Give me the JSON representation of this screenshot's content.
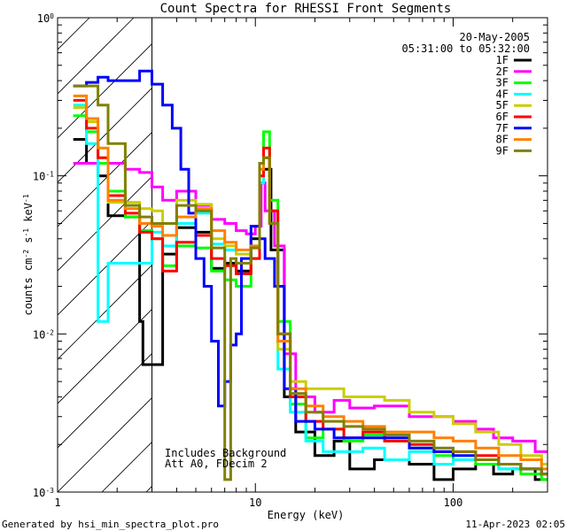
{
  "chart_data": {
    "type": "line",
    "title": "Count Spectra for RHESSI Front Segments",
    "xlabel": "Energy (keV)",
    "ylabel_main": "counts cm",
    "ylabel_sup1": "-2",
    "ylabel_mid": " s",
    "ylabel_sup2": "-1",
    "ylabel_mid2": " keV",
    "ylabel_sup3": "-1",
    "xscale": "log",
    "yscale": "log",
    "xlim": [
      1,
      300
    ],
    "ylim": [
      0.001,
      1
    ],
    "x_ticks": [
      {
        "value": 1,
        "label": "1"
      },
      {
        "value": 10,
        "label": "10"
      },
      {
        "value": 100,
        "label": "100"
      }
    ],
    "y_ticks": [
      {
        "value": 0.001,
        "base": "10",
        "exp": "-3"
      },
      {
        "value": 0.01,
        "base": "10",
        "exp": "-2"
      },
      {
        "value": 0.1,
        "base": "10",
        "exp": "-1"
      },
      {
        "value": 1,
        "base": "10",
        "exp": "0"
      }
    ],
    "date_text": "20-May-2005",
    "time_text": "05:31:00 to 05:32:00",
    "annotation_line1": "Includes Background",
    "annotation_line2": "Att A0, FDecim 2",
    "hatched_region_x": [
      1,
      3
    ],
    "legend_position": "top-right",
    "series": [
      {
        "name": "1F",
        "color": "#000000",
        "points": [
          [
            1.2,
            0.17
          ],
          [
            1.4,
            0.12
          ],
          [
            1.6,
            0.1
          ],
          [
            1.8,
            0.056
          ],
          [
            2.2,
            0.055
          ],
          [
            2.6,
            0.012
          ],
          [
            2.7,
            0.0064
          ],
          [
            3.2,
            0.0064
          ],
          [
            3.4,
            0.032
          ],
          [
            4.0,
            0.047
          ],
          [
            5.0,
            0.044
          ],
          [
            6.0,
            0.026
          ],
          [
            7.0,
            0.028
          ],
          [
            8.0,
            0.025
          ],
          [
            9.5,
            0.04
          ],
          [
            10.5,
            0.09
          ],
          [
            11.0,
            0.11
          ],
          [
            12.0,
            0.034
          ],
          [
            14,
            0.004
          ],
          [
            16,
            0.0024
          ],
          [
            20,
            0.0017
          ],
          [
            25,
            0.0021
          ],
          [
            30,
            0.0014
          ],
          [
            40,
            0.0016
          ],
          [
            60,
            0.0015
          ],
          [
            80,
            0.0012
          ],
          [
            100,
            0.0014
          ],
          [
            130,
            0.0015
          ],
          [
            160,
            0.0013
          ],
          [
            200,
            0.0014
          ],
          [
            260,
            0.0012
          ]
        ]
      },
      {
        "name": "2F",
        "color": "#ff00ff",
        "points": [
          [
            1.2,
            0.12
          ],
          [
            1.8,
            0.12
          ],
          [
            2.2,
            0.11
          ],
          [
            2.6,
            0.105
          ],
          [
            3.0,
            0.085
          ],
          [
            3.4,
            0.07
          ],
          [
            4.0,
            0.08
          ],
          [
            5.0,
            0.065
          ],
          [
            6.0,
            0.053
          ],
          [
            7.0,
            0.05
          ],
          [
            8.0,
            0.045
          ],
          [
            9.0,
            0.043
          ],
          [
            10.0,
            0.048
          ],
          [
            10.7,
            0.09
          ],
          [
            11.2,
            0.06
          ],
          [
            12.5,
            0.036
          ],
          [
            14,
            0.0075
          ],
          [
            16,
            0.004
          ],
          [
            20,
            0.0032
          ],
          [
            25,
            0.0038
          ],
          [
            30,
            0.0034
          ],
          [
            40,
            0.0035
          ],
          [
            60,
            0.003
          ],
          [
            80,
            0.003
          ],
          [
            100,
            0.0028
          ],
          [
            130,
            0.0025
          ],
          [
            160,
            0.0022
          ],
          [
            200,
            0.0021
          ],
          [
            260,
            0.0018
          ]
        ]
      },
      {
        "name": "3F",
        "color": "#00ff00",
        "points": [
          [
            1.2,
            0.24
          ],
          [
            1.4,
            0.19
          ],
          [
            1.6,
            0.12
          ],
          [
            1.8,
            0.08
          ],
          [
            2.2,
            0.055
          ],
          [
            2.6,
            0.045
          ],
          [
            3.0,
            0.04
          ],
          [
            3.4,
            0.027
          ],
          [
            4.0,
            0.036
          ],
          [
            5.0,
            0.035
          ],
          [
            6.0,
            0.025
          ],
          [
            7.0,
            0.022
          ],
          [
            8.0,
            0.02
          ],
          [
            9.5,
            0.03
          ],
          [
            10.5,
            0.12
          ],
          [
            11.0,
            0.19
          ],
          [
            11.8,
            0.07
          ],
          [
            13,
            0.012
          ],
          [
            15,
            0.0036
          ],
          [
            18,
            0.0022
          ],
          [
            22,
            0.0025
          ],
          [
            28,
            0.0021
          ],
          [
            35,
            0.0023
          ],
          [
            45,
            0.0021
          ],
          [
            60,
            0.0019
          ],
          [
            80,
            0.0017
          ],
          [
            100,
            0.0016
          ],
          [
            130,
            0.0015
          ],
          [
            170,
            0.0014
          ],
          [
            220,
            0.0013
          ],
          [
            280,
            0.0012
          ]
        ]
      },
      {
        "name": "4F",
        "color": "#00ffff",
        "points": [
          [
            1.2,
            0.28
          ],
          [
            1.4,
            0.16
          ],
          [
            1.6,
            0.012
          ],
          [
            1.8,
            0.028
          ],
          [
            2.2,
            0.028
          ],
          [
            2.6,
            0.028
          ],
          [
            3.0,
            0.044
          ],
          [
            3.4,
            0.036
          ],
          [
            4.0,
            0.05
          ],
          [
            5.0,
            0.058
          ],
          [
            6.0,
            0.037
          ],
          [
            7.0,
            0.034
          ],
          [
            8.0,
            0.032
          ],
          [
            9.5,
            0.036
          ],
          [
            10.5,
            0.09
          ],
          [
            11.0,
            0.13
          ],
          [
            11.8,
            0.05
          ],
          [
            13,
            0.006
          ],
          [
            15,
            0.0032
          ],
          [
            18,
            0.0021
          ],
          [
            22,
            0.0018
          ],
          [
            28,
            0.0018
          ],
          [
            35,
            0.0019
          ],
          [
            45,
            0.0016
          ],
          [
            60,
            0.0018
          ],
          [
            80,
            0.0015
          ],
          [
            100,
            0.0016
          ],
          [
            130,
            0.0016
          ],
          [
            170,
            0.0014
          ],
          [
            220,
            0.0014
          ],
          [
            280,
            0.0013
          ]
        ]
      },
      {
        "name": "5F",
        "color": "#cccc00",
        "points": [
          [
            1.2,
            0.27
          ],
          [
            1.4,
            0.22
          ],
          [
            1.6,
            0.13
          ],
          [
            1.8,
            0.068
          ],
          [
            2.2,
            0.068
          ],
          [
            2.6,
            0.062
          ],
          [
            3.0,
            0.06
          ],
          [
            3.4,
            0.05
          ],
          [
            4.0,
            0.07
          ],
          [
            5.0,
            0.066
          ],
          [
            6.0,
            0.04
          ],
          [
            7.0,
            0.036
          ],
          [
            8.0,
            0.032
          ],
          [
            9.5,
            0.035
          ],
          [
            10.5,
            0.1
          ],
          [
            11.0,
            0.13
          ],
          [
            11.8,
            0.05
          ],
          [
            13,
            0.008
          ],
          [
            15,
            0.005
          ],
          [
            18,
            0.0045
          ],
          [
            22,
            0.0045
          ],
          [
            28,
            0.004
          ],
          [
            35,
            0.004
          ],
          [
            45,
            0.0038
          ],
          [
            60,
            0.0032
          ],
          [
            80,
            0.003
          ],
          [
            100,
            0.0027
          ],
          [
            130,
            0.0024
          ],
          [
            170,
            0.002
          ],
          [
            220,
            0.0017
          ],
          [
            280,
            0.0015
          ]
        ]
      },
      {
        "name": "6F",
        "color": "#ff0000",
        "points": [
          [
            1.2,
            0.3
          ],
          [
            1.4,
            0.2
          ],
          [
            1.6,
            0.13
          ],
          [
            1.8,
            0.075
          ],
          [
            2.2,
            0.058
          ],
          [
            2.6,
            0.044
          ],
          [
            3.0,
            0.04
          ],
          [
            3.4,
            0.025
          ],
          [
            4.0,
            0.038
          ],
          [
            5.0,
            0.042
          ],
          [
            6.0,
            0.03
          ],
          [
            7.0,
            0.027
          ],
          [
            8.0,
            0.024
          ],
          [
            9.5,
            0.03
          ],
          [
            10.5,
            0.1
          ],
          [
            11.0,
            0.15
          ],
          [
            11.8,
            0.06
          ],
          [
            13,
            0.01
          ],
          [
            15,
            0.004
          ],
          [
            18,
            0.0028
          ],
          [
            22,
            0.0025
          ],
          [
            28,
            0.0022
          ],
          [
            35,
            0.0024
          ],
          [
            45,
            0.0021
          ],
          [
            60,
            0.002
          ],
          [
            80,
            0.0018
          ],
          [
            100,
            0.0018
          ],
          [
            130,
            0.0017
          ],
          [
            170,
            0.0015
          ],
          [
            220,
            0.0014
          ],
          [
            280,
            0.0013
          ]
        ]
      },
      {
        "name": "7F",
        "color": "#0000ff",
        "points": [
          [
            1.2,
            0.37
          ],
          [
            1.4,
            0.39
          ],
          [
            1.6,
            0.42
          ],
          [
            1.8,
            0.4
          ],
          [
            2.2,
            0.4
          ],
          [
            2.6,
            0.46
          ],
          [
            3.0,
            0.38
          ],
          [
            3.4,
            0.28
          ],
          [
            3.8,
            0.2
          ],
          [
            4.2,
            0.11
          ],
          [
            4.6,
            0.058
          ],
          [
            5.0,
            0.03
          ],
          [
            5.5,
            0.02
          ],
          [
            6.0,
            0.009
          ],
          [
            6.5,
            0.0035
          ],
          [
            7.0,
            0.005
          ],
          [
            7.5,
            0.0085
          ],
          [
            8.0,
            0.01
          ],
          [
            8.5,
            0.03
          ],
          [
            9.5,
            0.048
          ],
          [
            10.5,
            0.04
          ],
          [
            11.2,
            0.03
          ],
          [
            12.5,
            0.02
          ],
          [
            14,
            0.0045
          ],
          [
            16,
            0.0028
          ],
          [
            20,
            0.0025
          ],
          [
            25,
            0.0022
          ],
          [
            30,
            0.0022
          ],
          [
            40,
            0.0022
          ],
          [
            60,
            0.0019
          ],
          [
            80,
            0.0018
          ],
          [
            100,
            0.0017
          ],
          [
            130,
            0.0016
          ],
          [
            170,
            0.0015
          ],
          [
            220,
            0.0014
          ],
          [
            280,
            0.0013
          ]
        ]
      },
      {
        "name": "8F",
        "color": "#ff8000",
        "points": [
          [
            1.2,
            0.32
          ],
          [
            1.4,
            0.23
          ],
          [
            1.6,
            0.15
          ],
          [
            1.8,
            0.07
          ],
          [
            2.2,
            0.062
          ],
          [
            2.6,
            0.05
          ],
          [
            3.0,
            0.048
          ],
          [
            3.4,
            0.042
          ],
          [
            4.0,
            0.055
          ],
          [
            5.0,
            0.062
          ],
          [
            6.0,
            0.045
          ],
          [
            7.0,
            0.038
          ],
          [
            8.0,
            0.034
          ],
          [
            9.5,
            0.036
          ],
          [
            10.5,
            0.11
          ],
          [
            11.0,
            0.13
          ],
          [
            11.8,
            0.05
          ],
          [
            13,
            0.009
          ],
          [
            15,
            0.0045
          ],
          [
            18,
            0.0035
          ],
          [
            22,
            0.003
          ],
          [
            28,
            0.0028
          ],
          [
            35,
            0.0026
          ],
          [
            45,
            0.0024
          ],
          [
            60,
            0.0024
          ],
          [
            80,
            0.0022
          ],
          [
            100,
            0.0021
          ],
          [
            130,
            0.0019
          ],
          [
            170,
            0.0017
          ],
          [
            220,
            0.0016
          ],
          [
            280,
            0.0014
          ]
        ]
      },
      {
        "name": "9F",
        "color": "#808000",
        "points": [
          [
            1.2,
            0.37
          ],
          [
            1.4,
            0.37
          ],
          [
            1.6,
            0.28
          ],
          [
            1.8,
            0.16
          ],
          [
            2.2,
            0.065
          ],
          [
            2.6,
            0.055
          ],
          [
            3.0,
            0.05
          ],
          [
            3.4,
            0.05
          ],
          [
            4.0,
            0.065
          ],
          [
            5.0,
            0.06
          ],
          [
            6.0,
            0.035
          ],
          [
            7.0,
            0.0012
          ],
          [
            7.5,
            0.03
          ],
          [
            8.0,
            0.028
          ],
          [
            9.5,
            0.035
          ],
          [
            10.5,
            0.12
          ],
          [
            11.0,
            0.13
          ],
          [
            11.8,
            0.05
          ],
          [
            13,
            0.01
          ],
          [
            15,
            0.0042
          ],
          [
            18,
            0.0032
          ],
          [
            22,
            0.0028
          ],
          [
            28,
            0.0026
          ],
          [
            35,
            0.0025
          ],
          [
            45,
            0.0023
          ],
          [
            60,
            0.0021
          ],
          [
            80,
            0.0019
          ],
          [
            100,
            0.0018
          ],
          [
            130,
            0.0016
          ],
          [
            170,
            0.0015
          ],
          [
            220,
            0.0014
          ],
          [
            280,
            0.0013
          ]
        ]
      }
    ]
  },
  "footer": {
    "left": "Generated by hsi_min_spectra_plot.pro",
    "right": "11-Apr-2023 02:05"
  }
}
